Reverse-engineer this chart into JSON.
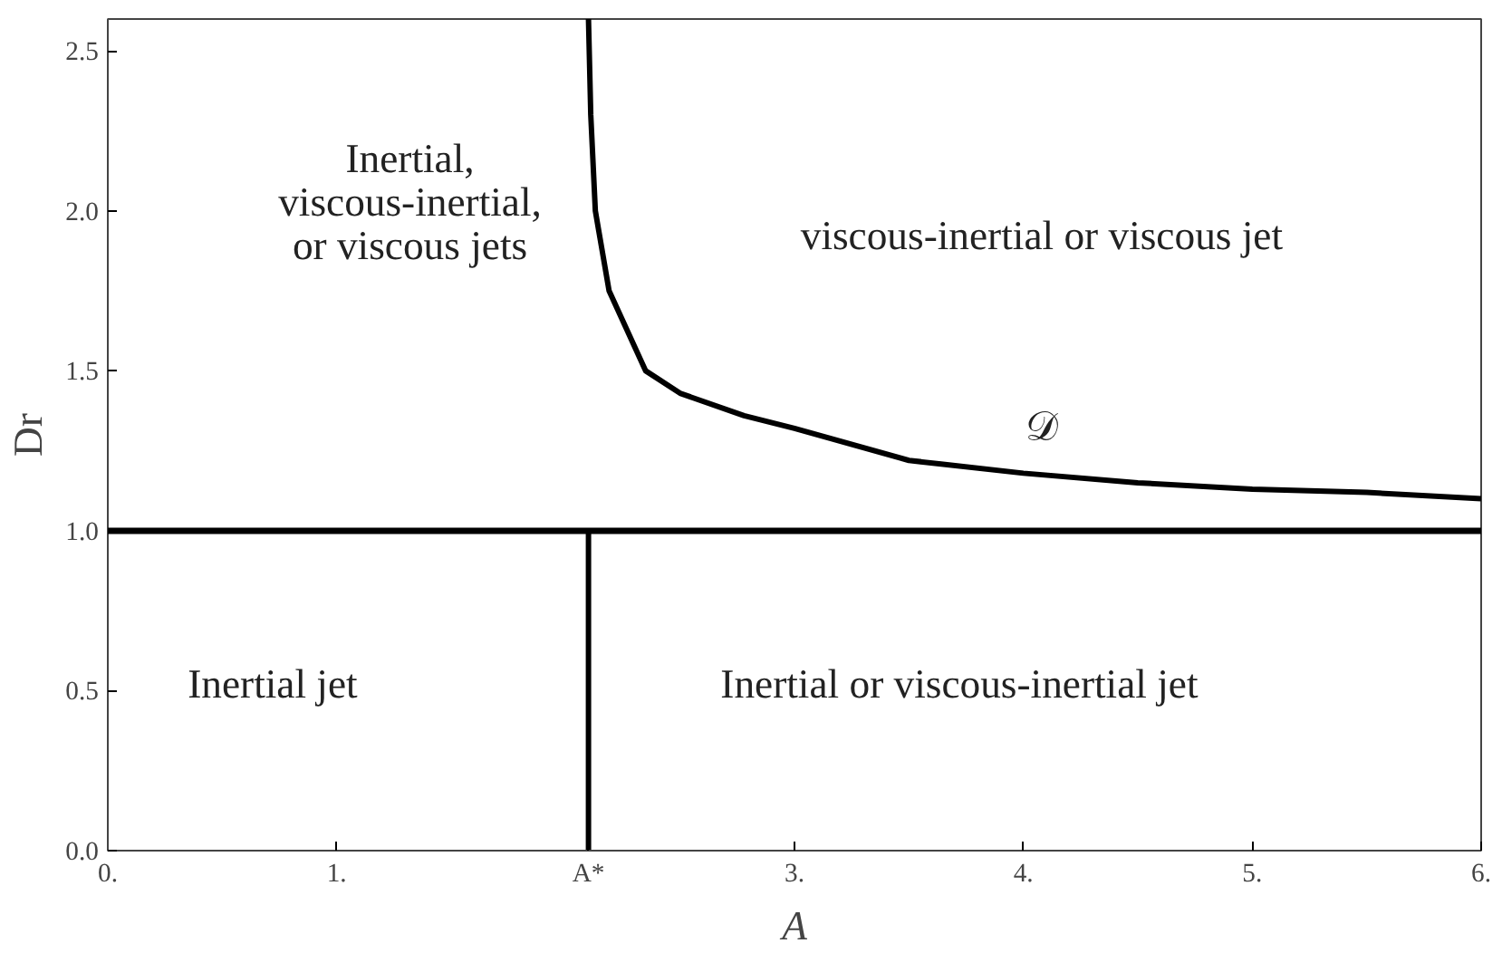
{
  "chart_data": {
    "type": "line",
    "xlabel": "A",
    "ylabel": "Dr",
    "xlim": [
      0,
      6
    ],
    "ylim": [
      0,
      2.6
    ],
    "xticks": [
      {
        "value": 0,
        "label": "0."
      },
      {
        "value": 1,
        "label": "1."
      },
      {
        "value": 2.1,
        "label": "A*"
      },
      {
        "value": 3,
        "label": "3."
      },
      {
        "value": 4,
        "label": "4."
      },
      {
        "value": 5,
        "label": "5."
      },
      {
        "value": 6,
        "label": "6."
      }
    ],
    "yticks": [
      {
        "value": 0,
        "label": "0.0"
      },
      {
        "value": 0.5,
        "label": "0.5"
      },
      {
        "value": 1,
        "label": "1.0"
      },
      {
        "value": 1.5,
        "label": "1.5"
      },
      {
        "value": 2,
        "label": "2.0"
      },
      {
        "value": 2.5,
        "label": "2.5"
      }
    ],
    "series": [
      {
        "color": "#000000",
        "x": [
          2.1,
          2.11,
          2.13,
          2.19,
          2.35,
          2.5,
          2.78,
          3.0,
          3.5,
          4.0,
          4.5,
          5.0,
          5.5,
          6.0
        ],
        "values": [
          2.6,
          2.3,
          2.0,
          1.75,
          1.5,
          1.43,
          1.36,
          1.32,
          1.22,
          1.18,
          1.15,
          1.13,
          1.12,
          1.1
        ]
      },
      {
        "color": "#000000",
        "x": [
          2.1,
          2.1
        ],
        "values": [
          0,
          1
        ]
      }
    ],
    "ref_lines": [
      {
        "axis": "y",
        "value": 1,
        "color": "#000000"
      }
    ],
    "annotations": [
      "Inertial,\nviscous-inertial,\nor viscous jets",
      "viscous-inertial or viscous jet",
      "𝒟",
      "Inertial jet",
      "Inertial or viscous-inertial jet"
    ],
    "line_style": "solid"
  }
}
